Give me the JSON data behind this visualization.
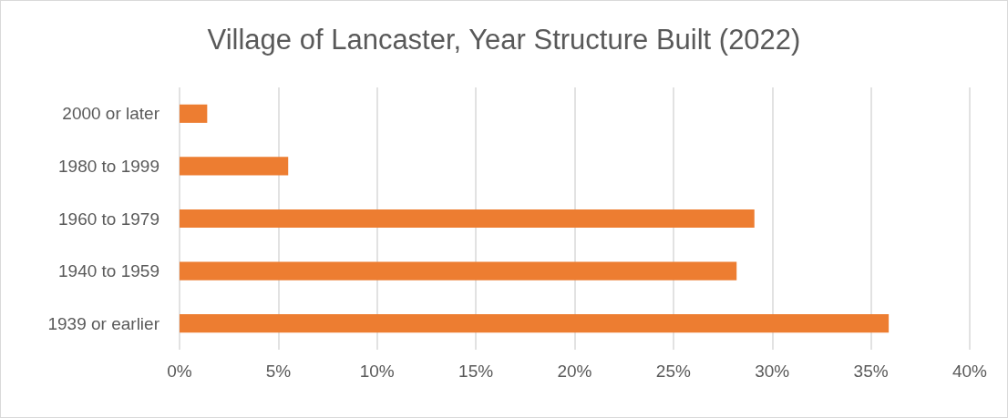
{
  "chart_data": {
    "type": "bar",
    "orientation": "horizontal",
    "title": "Village of Lancaster, Year Structure Built (2022)",
    "categories": [
      "2000 or later",
      "1980 to 1999",
      "1960 to 1979",
      "1940 to 1959",
      "1939 or earlier"
    ],
    "values": [
      1.4,
      5.5,
      29.1,
      28.2,
      35.9
    ],
    "color": "#ed7d31",
    "xlim": [
      0,
      40
    ],
    "xticks": [
      {
        "value": 0,
        "label": "0%"
      },
      {
        "value": 5,
        "label": "5%"
      },
      {
        "value": 10,
        "label": "10%"
      },
      {
        "value": 15,
        "label": "15%"
      },
      {
        "value": 20,
        "label": "20%"
      },
      {
        "value": 25,
        "label": "25%"
      },
      {
        "value": 30,
        "label": "30%"
      },
      {
        "value": 35,
        "label": "35%"
      },
      {
        "value": 40,
        "label": "40%"
      }
    ],
    "grid": "x"
  }
}
